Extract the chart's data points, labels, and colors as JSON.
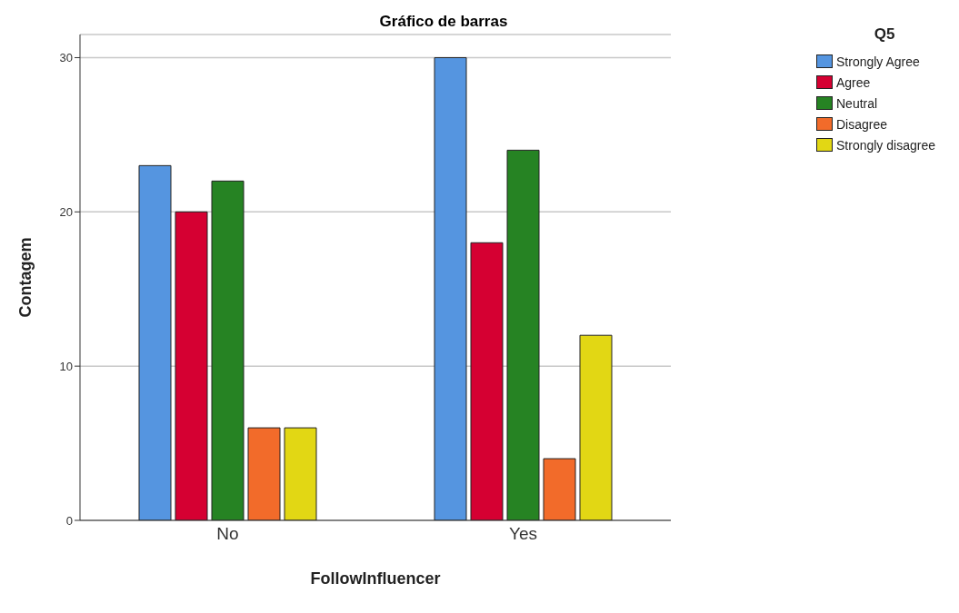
{
  "chart_data": {
    "type": "bar",
    "title": "Gráfico de barras",
    "xlabel": "FollowInfluencer",
    "ylabel": "Contagem",
    "legend_title": "Q5",
    "categories": [
      "No",
      "Yes"
    ],
    "series": [
      {
        "name": "Strongly Agree",
        "color": "#5595e0",
        "values": [
          23,
          30
        ]
      },
      {
        "name": "Agree",
        "color": "#d50032",
        "values": [
          20,
          18
        ]
      },
      {
        "name": "Neutral",
        "color": "#268323",
        "values": [
          22,
          24
        ]
      },
      {
        "name": "Disagree",
        "color": "#f26b2a",
        "values": [
          6,
          4
        ]
      },
      {
        "name": "Strongly disagree",
        "color": "#e2d714",
        "values": [
          6,
          12
        ]
      }
    ],
    "ylim": [
      0,
      31.5
    ],
    "yticks": [
      0,
      10,
      20,
      30
    ],
    "grid": "y",
    "legend": "top right"
  }
}
